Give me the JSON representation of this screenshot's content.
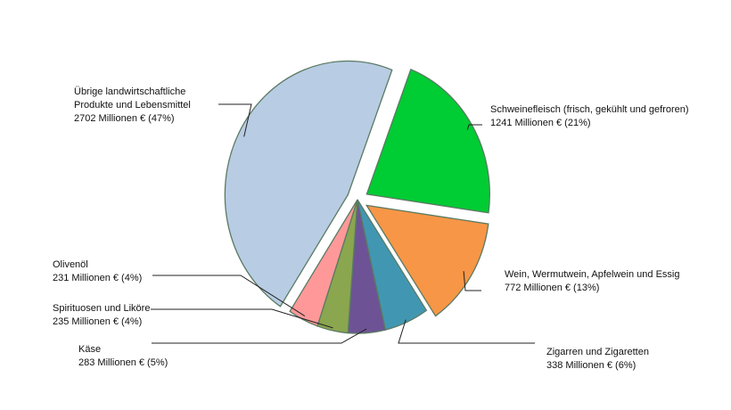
{
  "chart_data": {
    "type": "pie",
    "title": "",
    "unit": "Millionen €",
    "slices": [
      {
        "name_lines": [
          "Schweinefleisch (frisch, gekühlt und gefroren)"
        ],
        "value_text": "1241 Millionen € (21%)",
        "value": 1241,
        "percent": 21,
        "color": "#00cc33",
        "exploded": true
      },
      {
        "name_lines": [
          "Wein, Wermutwein, Apfelwein und Essig"
        ],
        "value_text": "772 Millionen €  (13%)",
        "value": 772,
        "percent": 13,
        "color": "#f79646",
        "exploded": true
      },
      {
        "name_lines": [
          "Zigarren und Zigaretten"
        ],
        "value_text": "338 Millionen € (6%)",
        "value": 338,
        "percent": 6,
        "color": "#4197b2",
        "exploded": false
      },
      {
        "name_lines": [
          "Käse"
        ],
        "value_text": "283 Millionen € (5%)",
        "value": 283,
        "percent": 5,
        "color": "#6d5395",
        "exploded": false
      },
      {
        "name_lines": [
          "Spirituosen und Liköre"
        ],
        "value_text": "235 Millionen € (4%)",
        "value": 235,
        "percent": 4,
        "color": "#8aa64f",
        "exploded": false
      },
      {
        "name_lines": [
          "Olivenöl"
        ],
        "value_text": "231 Millionen € (4%)",
        "value": 231,
        "percent": 4,
        "color": "#ff9999",
        "exploded": false
      },
      {
        "name_lines": [
          "Übrige landwirtschaftliche",
          "Produkte und Lebensmittel"
        ],
        "value_text": "2702 Millionen € (47%)",
        "value": 2702,
        "percent": 47,
        "color": "#b8cce4",
        "exploded": true
      }
    ]
  }
}
